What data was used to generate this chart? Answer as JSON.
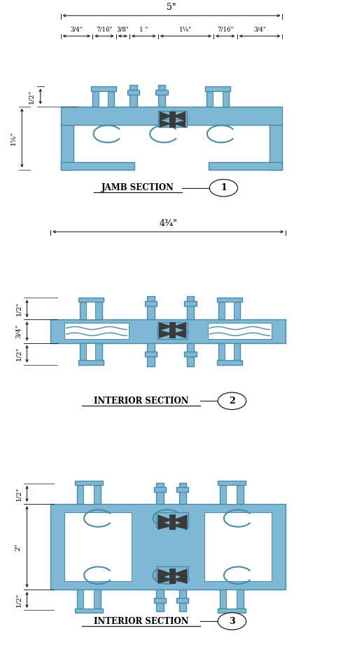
{
  "bg_color": "#ffffff",
  "frame_fill": "#7eb8d4",
  "frame_edge": "#4a8aaa",
  "dark_fill": "#3a3a3a",
  "line_color": "#1a1a1a",
  "sec1_label": "JAMB SECTION",
  "sec2_label": "INTERIOR SECTION",
  "sec3_label": "INTERIOR SECTION",
  "sec1_num": "1",
  "sec2_num": "2",
  "sec3_num": "3",
  "sec1_top_dim": "5\"",
  "sec2_top_dim": "4¾\"",
  "sec1_sub_dims": [
    "3/4\"",
    "7/16\"",
    "3/8\"",
    "1 \"",
    "1¼\"",
    "7/16\"",
    "3/4\""
  ],
  "sec1_left_dims": [
    "1/2\"",
    "1⅝\""
  ],
  "sec2_left_dims": [
    "1/2\"",
    "3/4\"",
    "1/2\""
  ],
  "sec3_left_dims": [
    "1/2\"",
    "2\"",
    "1/2\""
  ]
}
